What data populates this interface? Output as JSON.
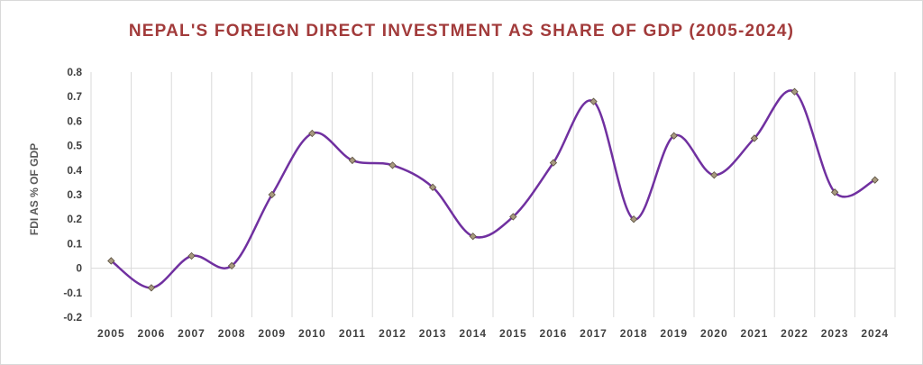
{
  "chart_data": {
    "type": "line",
    "title": "NEPAL'S FOREIGN DIRECT INVESTMENT AS SHARE OF GDP (2005-2024)",
    "xlabel": "",
    "ylabel": "FDI AS % OF GDP",
    "ylim": [
      -0.2,
      0.8
    ],
    "yticks": [
      -0.2,
      -0.1,
      0,
      0.1,
      0.2,
      0.3,
      0.4,
      0.5,
      0.6,
      0.7,
      0.8
    ],
    "ytick_labels": [
      "-0.2",
      "-0.1",
      "0",
      "0.1",
      "0.2",
      "0.3",
      "0.4",
      "0.5",
      "0.6",
      "0.7",
      "0.8"
    ],
    "categories": [
      "2005",
      "2006",
      "2007",
      "2008",
      "2009",
      "2010",
      "2011",
      "2012",
      "2013",
      "2014",
      "2015",
      "2016",
      "2017",
      "2018",
      "2019",
      "2020",
      "2021",
      "2022",
      "2023",
      "2024"
    ],
    "series": [
      {
        "name": "FDI as % of GDP",
        "values": [
          0.03,
          -0.08,
          0.05,
          0.01,
          0.3,
          0.55,
          0.44,
          0.42,
          0.33,
          0.13,
          0.21,
          0.43,
          0.68,
          0.2,
          0.54,
          0.38,
          0.53,
          0.72,
          0.31,
          0.36
        ]
      }
    ],
    "grid": "vertical",
    "legend": "none",
    "colors": {
      "title": "#a23b3b",
      "line": "#7030a0",
      "marker_fill": "#a89a80",
      "marker_stroke": "#5a4f3e",
      "grid": "#d9d9d9"
    }
  }
}
